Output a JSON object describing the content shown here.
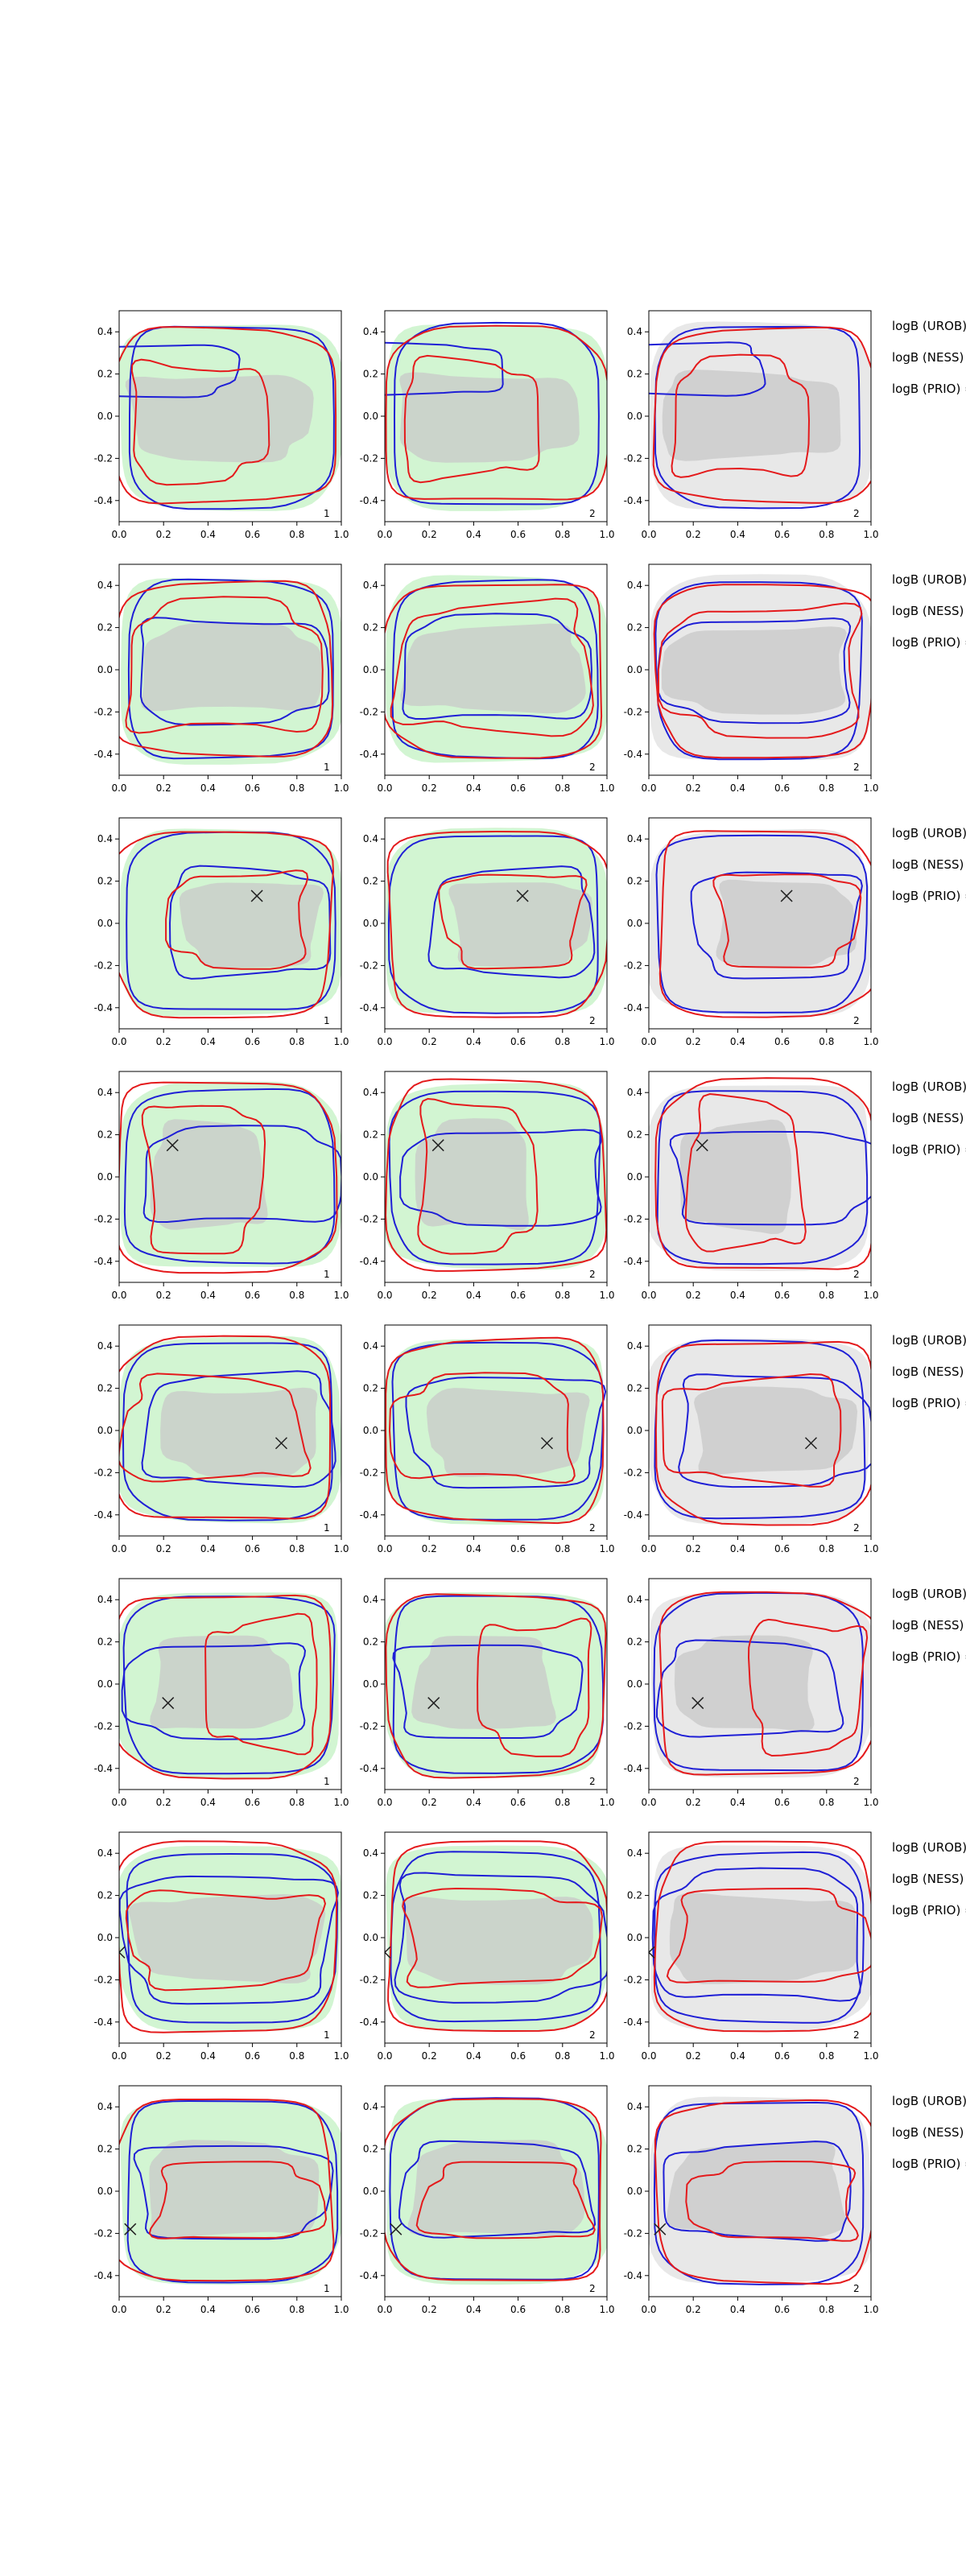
{
  "chart_data": {
    "type": "contour",
    "layout": "8 rows x 3 columns of contour panels",
    "xlim": [
      0,
      1
    ],
    "ylim": [
      -0.5,
      0.5
    ],
    "xticks": [
      "0.0",
      "0.2",
      "0.4",
      "0.6",
      "0.8",
      "1.0"
    ],
    "yticks": [
      "0.4",
      "0.2",
      "0.0",
      "-0.2",
      "-0.4"
    ],
    "panel_labels": [
      "1",
      "2",
      "2"
    ],
    "panel_backgrounds": [
      "#d2f5d2",
      "#d2f5d2",
      "#e8e8e8"
    ],
    "row_labels": [
      "logB (UROB) =",
      "logB (NESS) =",
      "logB (PRIO) ="
    ],
    "colors": {
      "red": "#e41a1c",
      "blue": "#1f1fd6",
      "green_fill": "#c6efc6",
      "gray_fill": "#c8c8c8",
      "marker": "#222222"
    },
    "markers": [
      null,
      null,
      [
        0.62,
        0.13
      ],
      [
        0.24,
        0.15
      ],
      [
        0.73,
        -0.06
      ],
      [
        0.22,
        -0.09
      ],
      [
        0.0,
        -0.07
      ],
      [
        0.05,
        -0.18
      ]
    ],
    "rows": [
      {
        "blue": [
          [
            0.12,
            0.22,
            0.4,
            0.12
          ],
          [
            0.5,
            0.0,
            0.46,
            0.43
          ]
        ],
        "red": [
          [
            0.38,
            -0.02,
            0.3,
            0.27
          ],
          [
            0.5,
            0.0,
            0.5,
            0.41
          ]
        ],
        "gray": [
          [
            0.45,
            0.0,
            0.4,
            0.2
          ]
        ]
      },
      {
        "blue": [
          [
            0.5,
            0.0,
            0.42,
            0.24
          ],
          [
            0.5,
            0.0,
            0.46,
            0.42
          ]
        ],
        "red": [
          [
            0.5,
            0.0,
            0.43,
            0.3
          ],
          [
            0.5,
            0.0,
            0.49,
            0.41
          ]
        ],
        "gray": [
          [
            0.5,
            0.0,
            0.4,
            0.2
          ]
        ]
      },
      {
        "blue": [
          [
            0.58,
            0.0,
            0.36,
            0.25
          ],
          [
            0.5,
            0.0,
            0.47,
            0.42
          ]
        ],
        "red": [
          [
            0.58,
            0.02,
            0.3,
            0.22
          ],
          [
            0.5,
            0.0,
            0.49,
            0.44
          ]
        ],
        "gray": [
          [
            0.6,
            0.0,
            0.3,
            0.2
          ]
        ]
      },
      {
        "blue": [
          [
            0.55,
            0.0,
            0.44,
            0.22
          ],
          [
            0.5,
            0.0,
            0.47,
            0.41
          ]
        ],
        "red": [
          [
            0.4,
            0.0,
            0.25,
            0.35
          ],
          [
            0.5,
            0.0,
            0.49,
            0.45
          ]
        ],
        "gray": [
          [
            0.4,
            0.0,
            0.25,
            0.25
          ]
        ]
      },
      {
        "blue": [
          [
            0.55,
            0.0,
            0.42,
            0.26
          ],
          [
            0.5,
            0.0,
            0.47,
            0.42
          ]
        ],
        "red": [
          [
            0.45,
            0.0,
            0.4,
            0.24
          ],
          [
            0.5,
            0.0,
            0.49,
            0.43
          ]
        ],
        "gray": [
          [
            0.55,
            0.0,
            0.35,
            0.2
          ]
        ]
      },
      {
        "blue": [
          [
            0.45,
            -0.03,
            0.4,
            0.22
          ],
          [
            0.5,
            0.0,
            0.47,
            0.42
          ]
        ],
        "red": [
          [
            0.68,
            0.0,
            0.25,
            0.3
          ],
          [
            0.5,
            0.0,
            0.49,
            0.43
          ]
        ],
        "gray": [
          [
            0.45,
            0.0,
            0.3,
            0.22
          ]
        ]
      },
      {
        "blue": [
          [
            0.5,
            0.0,
            0.46,
            0.3
          ],
          [
            0.5,
            0.0,
            0.47,
            0.4
          ]
        ],
        "red": [
          [
            0.5,
            0.0,
            0.42,
            0.22
          ],
          [
            0.5,
            0.0,
            0.49,
            0.45
          ]
        ],
        "gray": [
          [
            0.5,
            0.0,
            0.42,
            0.2
          ]
        ]
      },
      {
        "blue": [
          [
            0.5,
            0.0,
            0.42,
            0.22
          ],
          [
            0.5,
            0.0,
            0.47,
            0.43
          ]
        ],
        "red": [
          [
            0.55,
            -0.05,
            0.36,
            0.18
          ],
          [
            0.5,
            0.0,
            0.49,
            0.43
          ]
        ],
        "gray": [
          [
            0.5,
            0.0,
            0.38,
            0.22
          ]
        ]
      }
    ]
  }
}
